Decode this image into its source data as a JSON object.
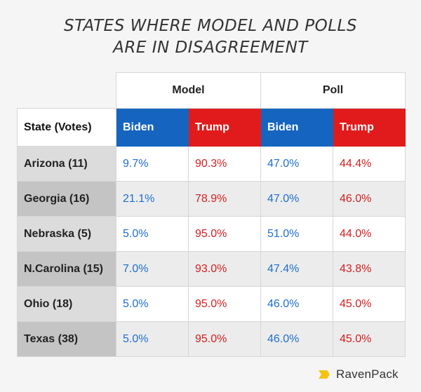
{
  "chart_data": {
    "type": "table",
    "title_lines": [
      "STATES WHERE MODEL AND POLLS",
      "ARE IN DISAGREEMENT"
    ],
    "groups": [
      "Model",
      "Poll"
    ],
    "columns": [
      "State (Votes)",
      "Biden",
      "Trump",
      "Biden",
      "Trump"
    ],
    "rows": [
      {
        "state": "Arizona (11)",
        "model_biden": "9.7%",
        "model_trump": "90.3%",
        "poll_biden": "47.0%",
        "poll_trump": "44.4%"
      },
      {
        "state": "Georgia (16)",
        "model_biden": "21.1%",
        "model_trump": "78.9%",
        "poll_biden": "47.0%",
        "poll_trump": "46.0%"
      },
      {
        "state": "Nebraska (5)",
        "model_biden": "5.0%",
        "model_trump": "95.0%",
        "poll_biden": "51.0%",
        "poll_trump": "44.0%"
      },
      {
        "state": "N.Carolina (15)",
        "model_biden": "7.0%",
        "model_trump": "93.0%",
        "poll_biden": "47.4%",
        "poll_trump": "43.8%"
      },
      {
        "state": "Ohio (18)",
        "model_biden": "5.0%",
        "model_trump": "95.0%",
        "poll_biden": "46.0%",
        "poll_trump": "45.0%"
      },
      {
        "state": "Texas (38)",
        "model_biden": "5.0%",
        "model_trump": "95.0%",
        "poll_biden": "46.0%",
        "poll_trump": "45.0%"
      }
    ]
  },
  "colors": {
    "biden": "#1565c0",
    "trump": "#e11b1b",
    "logo_mark": "#f2c30f"
  },
  "logo": {
    "text": "RavenPack",
    "icon": "ravenpack-logo-icon"
  }
}
